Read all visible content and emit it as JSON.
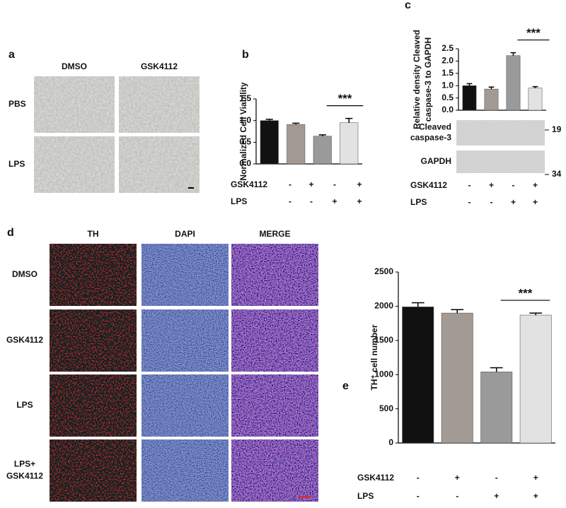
{
  "panel_labels": [
    "a",
    "b",
    "c",
    "d",
    "e"
  ],
  "panel_a": {
    "columns": [
      "DMSO",
      "GSK4112"
    ],
    "rows": [
      "PBS",
      "LPS"
    ]
  },
  "panel_d": {
    "columns": [
      "TH",
      "DAPI",
      "MERGE"
    ],
    "rows": [
      [
        "DMSO"
      ],
      [
        "GSK4112"
      ],
      [
        "LPS"
      ],
      [
        "LPS+",
        "GSK4112"
      ]
    ]
  },
  "blot": [
    {
      "label": [
        "Cleaved",
        "caspase-3"
      ],
      "marker": 19
    },
    {
      "label": [
        "GAPDH"
      ],
      "marker": 34
    }
  ],
  "chart_data": [
    {
      "type": "bar",
      "ylabel": [
        "Normalized Cell Viability"
      ],
      "values": [
        1.0,
        0.91,
        0.64,
        0.95
      ],
      "errors": [
        0.03,
        0.03,
        0.03,
        0.1
      ],
      "colors": [
        "#111111",
        "#a39a94",
        "#9a9a9a",
        "#e2e2e2"
      ],
      "ylim": [
        0,
        1.5
      ],
      "yticks": [
        {
          "value": 0,
          "label": "0.0"
        },
        {
          "value": 0.5,
          "label": "0.5"
        },
        {
          "value": 1,
          "label": "1.0"
        },
        {
          "value": 1.5,
          "label": "1.5"
        }
      ],
      "annotation": "***",
      "conditions": [
        {
          "name": "GSK4112",
          "signs": [
            "-",
            "+",
            "-",
            "+"
          ]
        },
        {
          "name": "LPS",
          "signs": [
            "-",
            "-",
            "+",
            "+"
          ]
        }
      ]
    },
    {
      "type": "bar",
      "ylabel": [
        "Relative density Cleaved",
        "caspase-3 to GAPDH"
      ],
      "values": [
        1.0,
        0.86,
        2.22,
        0.9
      ],
      "errors": [
        0.08,
        0.08,
        0.12,
        0.06
      ],
      "colors": [
        "#111111",
        "#a39a94",
        "#9a9a9a",
        "#e2e2e2"
      ],
      "ylim": [
        0,
        2.5
      ],
      "yticks": [
        {
          "value": 0,
          "label": "0.0"
        },
        {
          "value": 0.5,
          "label": "0.5"
        },
        {
          "value": 1,
          "label": "1.0"
        },
        {
          "value": 1.5,
          "label": "1.5"
        },
        {
          "value": 2,
          "label": "2.0"
        },
        {
          "value": 2.5,
          "label": "2.5"
        }
      ],
      "annotation": "***",
      "conditions": [
        {
          "name": "GSK4112",
          "signs": [
            "-",
            "+",
            "-",
            "+"
          ]
        },
        {
          "name": "LPS",
          "signs": [
            "-",
            "-",
            "+",
            "+"
          ]
        }
      ]
    },
    {
      "type": "bar",
      "ylabel": [
        "TH⁺ cell number"
      ],
      "values": [
        1990,
        1900,
        1040,
        1870
      ],
      "errors": [
        60,
        50,
        60,
        30
      ],
      "colors": [
        "#111111",
        "#a39a94",
        "#9a9a9a",
        "#e2e2e2"
      ],
      "ylim": [
        0,
        2500
      ],
      "yticks": [
        0,
        500,
        1000,
        1500,
        2000,
        2500
      ],
      "annotation": "***",
      "conditions": [
        {
          "name": "GSK4112",
          "signs": [
            "-",
            "+",
            "-",
            "+"
          ]
        },
        {
          "name": "LPS",
          "signs": [
            "-",
            "-",
            "+",
            "+"
          ]
        }
      ]
    }
  ]
}
